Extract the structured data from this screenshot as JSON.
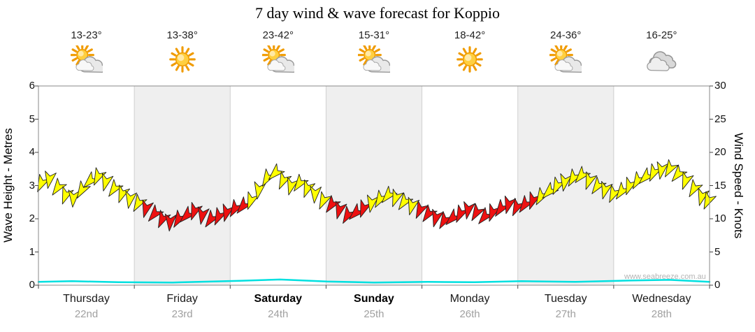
{
  "title": "7 day wind & wave forecast for Koppio",
  "watermark": "www.seabreeze.com.au",
  "axes": {
    "left_title": "Wave Height - Metres",
    "right_title": "Wind Speed - Knots",
    "left_ticks": [
      "0",
      "1",
      "2",
      "3",
      "4",
      "5",
      "6"
    ],
    "right_ticks": [
      "0",
      "5",
      "10",
      "15",
      "20",
      "25",
      "30"
    ]
  },
  "days": [
    {
      "name": "Thursday",
      "date": "22nd",
      "temp": "13-23°",
      "icon": "sun-cloud",
      "weekend": false
    },
    {
      "name": "Friday",
      "date": "23rd",
      "temp": "13-38°",
      "icon": "sun",
      "weekend": false
    },
    {
      "name": "Saturday",
      "date": "24th",
      "temp": "23-42°",
      "icon": "sun-cloud",
      "weekend": true
    },
    {
      "name": "Sunday",
      "date": "25th",
      "temp": "15-31°",
      "icon": "sun-cloud",
      "weekend": true
    },
    {
      "name": "Monday",
      "date": "26th",
      "temp": "18-42°",
      "icon": "sun",
      "weekend": false
    },
    {
      "name": "Tuesday",
      "date": "27th",
      "temp": "24-36°",
      "icon": "sun-cloud",
      "weekend": false
    },
    {
      "name": "Wednesday",
      "date": "28th",
      "temp": "16-25°",
      "icon": "cloud",
      "weekend": false
    }
  ],
  "chart_data": {
    "type": "wind-wave-forecast",
    "title": "7 day wind & wave forecast for Koppio",
    "x_axis": {
      "label": "days",
      "categories": [
        "Thursday 22nd",
        "Friday 23rd",
        "Saturday 24th",
        "Sunday 25th",
        "Monday 26th",
        "Tuesday 27th",
        "Wednesday 28th"
      ]
    },
    "wave_height_axis": {
      "label": "Wave Height - Metres",
      "min": 0,
      "max": 6
    },
    "wind_speed_axis": {
      "label": "Wind Speed - Knots",
      "min": 0,
      "max": 30
    },
    "colors": {
      "wind_light": "#ffff00",
      "wind_strong": "#ee1111",
      "wave_line": "#00e0e0",
      "stripe": "#efefef",
      "grid": "#d0d0d0",
      "border": "#888888"
    },
    "wave_series_t_metres": [
      [
        0,
        0.1
      ],
      [
        0.05,
        0.12
      ],
      [
        0.12,
        0.09
      ],
      [
        0.2,
        0.08
      ],
      [
        0.3,
        0.13
      ],
      [
        0.36,
        0.17
      ],
      [
        0.43,
        0.11
      ],
      [
        0.5,
        0.08
      ],
      [
        0.58,
        0.1
      ],
      [
        0.65,
        0.09
      ],
      [
        0.72,
        0.12
      ],
      [
        0.8,
        0.1
      ],
      [
        0.88,
        0.14
      ],
      [
        0.94,
        0.16
      ],
      [
        1,
        0.1
      ]
    ],
    "wind_arrows_t_knots_dir_color": [
      [
        0.004,
        15.2,
        205,
        "y"
      ],
      [
        0.016,
        15.8,
        190,
        "y"
      ],
      [
        0.028,
        14.6,
        215,
        "y"
      ],
      [
        0.04,
        13.4,
        200,
        "y"
      ],
      [
        0.052,
        13.0,
        185,
        "y"
      ],
      [
        0.064,
        14.2,
        210,
        "y"
      ],
      [
        0.076,
        15.6,
        225,
        "y"
      ],
      [
        0.088,
        16.2,
        205,
        "y"
      ],
      [
        0.1,
        15.4,
        195,
        "y"
      ],
      [
        0.112,
        14.4,
        215,
        "y"
      ],
      [
        0.124,
        13.6,
        200,
        "y"
      ],
      [
        0.136,
        12.8,
        190,
        "y"
      ],
      [
        0.148,
        12.2,
        210,
        "y"
      ],
      [
        0.16,
        11.4,
        195,
        "r"
      ],
      [
        0.172,
        10.6,
        220,
        "r"
      ],
      [
        0.184,
        9.8,
        205,
        "r"
      ],
      [
        0.196,
        9.4,
        185,
        "r"
      ],
      [
        0.208,
        9.8,
        210,
        "r"
      ],
      [
        0.22,
        10.4,
        225,
        "r"
      ],
      [
        0.232,
        11.0,
        200,
        "r"
      ],
      [
        0.244,
        10.4,
        190,
        "r"
      ],
      [
        0.256,
        9.8,
        215,
        "r"
      ],
      [
        0.268,
        10.2,
        205,
        "r"
      ],
      [
        0.28,
        10.8,
        195,
        "r"
      ],
      [
        0.292,
        11.4,
        210,
        "r"
      ],
      [
        0.304,
        11.8,
        220,
        "r"
      ],
      [
        0.316,
        12.6,
        200,
        "y"
      ],
      [
        0.328,
        14.2,
        190,
        "y"
      ],
      [
        0.34,
        16.0,
        210,
        "y"
      ],
      [
        0.352,
        16.8,
        225,
        "y"
      ],
      [
        0.364,
        15.6,
        205,
        "y"
      ],
      [
        0.376,
        14.8,
        195,
        "y"
      ],
      [
        0.388,
        15.2,
        215,
        "y"
      ],
      [
        0.4,
        14.4,
        200,
        "y"
      ],
      [
        0.412,
        13.6,
        185,
        "y"
      ],
      [
        0.424,
        12.6,
        205,
        "y"
      ],
      [
        0.436,
        12.0,
        215,
        "r"
      ],
      [
        0.448,
        11.2,
        195,
        "r"
      ],
      [
        0.46,
        10.4,
        210,
        "r"
      ],
      [
        0.472,
        10.8,
        225,
        "r"
      ],
      [
        0.484,
        11.4,
        200,
        "r"
      ],
      [
        0.496,
        12.2,
        190,
        "y"
      ],
      [
        0.508,
        12.8,
        210,
        "y"
      ],
      [
        0.52,
        13.4,
        220,
        "y"
      ],
      [
        0.532,
        13.0,
        200,
        "y"
      ],
      [
        0.544,
        12.4,
        215,
        "y"
      ],
      [
        0.556,
        11.8,
        195,
        "y"
      ],
      [
        0.568,
        11.2,
        205,
        "r"
      ],
      [
        0.58,
        10.6,
        215,
        "r"
      ],
      [
        0.592,
        10.0,
        195,
        "r"
      ],
      [
        0.604,
        9.6,
        210,
        "r"
      ],
      [
        0.616,
        10.0,
        225,
        "r"
      ],
      [
        0.628,
        10.6,
        205,
        "r"
      ],
      [
        0.64,
        11.2,
        190,
        "r"
      ],
      [
        0.652,
        10.8,
        210,
        "r"
      ],
      [
        0.664,
        10.2,
        220,
        "r"
      ],
      [
        0.676,
        10.8,
        200,
        "r"
      ],
      [
        0.688,
        11.4,
        215,
        "r"
      ],
      [
        0.7,
        12.0,
        195,
        "r"
      ],
      [
        0.712,
        11.6,
        205,
        "r"
      ],
      [
        0.724,
        12.0,
        215,
        "r"
      ],
      [
        0.736,
        12.6,
        200,
        "r"
      ],
      [
        0.748,
        13.2,
        210,
        "y"
      ],
      [
        0.76,
        14.0,
        225,
        "y"
      ],
      [
        0.772,
        14.8,
        205,
        "y"
      ],
      [
        0.784,
        15.4,
        190,
        "y"
      ],
      [
        0.796,
        16.0,
        210,
        "y"
      ],
      [
        0.808,
        16.4,
        220,
        "y"
      ],
      [
        0.82,
        15.6,
        200,
        "y"
      ],
      [
        0.832,
        14.8,
        215,
        "y"
      ],
      [
        0.844,
        14.2,
        195,
        "y"
      ],
      [
        0.856,
        13.6,
        205,
        "y"
      ],
      [
        0.868,
        14.0,
        215,
        "y"
      ],
      [
        0.88,
        14.8,
        200,
        "y"
      ],
      [
        0.892,
        15.6,
        210,
        "y"
      ],
      [
        0.904,
        16.2,
        225,
        "y"
      ],
      [
        0.916,
        16.8,
        205,
        "y"
      ],
      [
        0.928,
        17.2,
        190,
        "y"
      ],
      [
        0.94,
        17.4,
        210,
        "y"
      ],
      [
        0.952,
        16.6,
        220,
        "y"
      ],
      [
        0.964,
        15.6,
        200,
        "y"
      ],
      [
        0.976,
        14.4,
        210,
        "y"
      ],
      [
        0.988,
        13.2,
        195,
        "y"
      ],
      [
        0.997,
        12.6,
        205,
        "y"
      ]
    ]
  }
}
